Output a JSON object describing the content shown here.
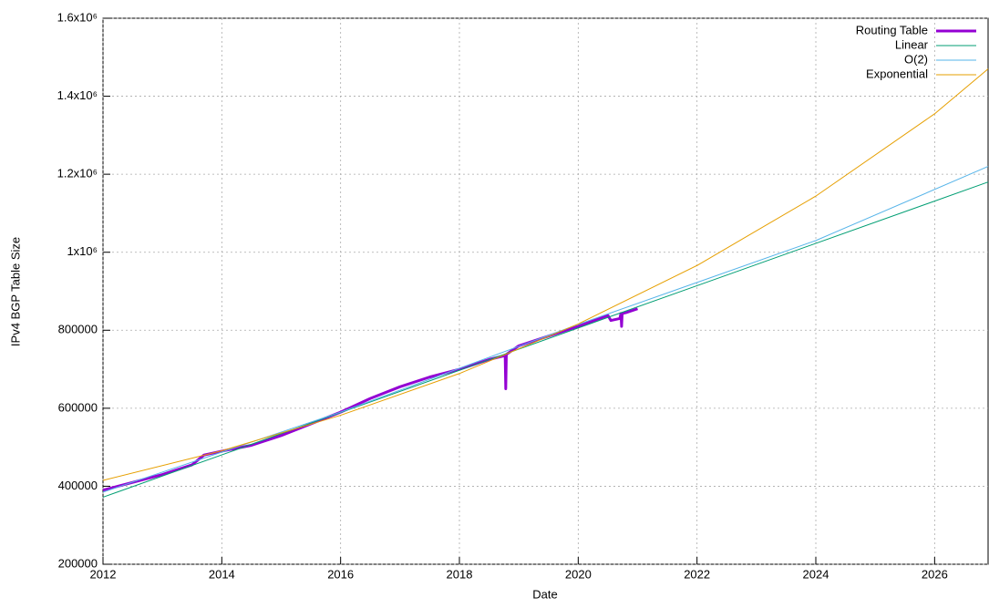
{
  "chart_data": {
    "type": "line",
    "x_label": "Date",
    "y_label": "IPv4 BGP Table Size",
    "xlim": [
      2012,
      2026.9
    ],
    "xticks": [
      2012,
      2014,
      2016,
      2018,
      2020,
      2022,
      2024,
      2026
    ],
    "ylim": [
      200000,
      1600000
    ],
    "yticks": [
      200000,
      400000,
      600000,
      800000,
      {
        "value": 1000000,
        "label": "1x10⁶"
      },
      {
        "value": 1200000,
        "label": "1.2x10⁶"
      },
      {
        "value": 1400000,
        "label": "1.4x10⁶"
      },
      {
        "value": 1600000,
        "label": "1.6x10⁶"
      }
    ],
    "grid": true,
    "legend": "top-right",
    "series": [
      {
        "name": "Routing Table",
        "color": "#9400d3",
        "x": [
          2012.0,
          2012.5,
          2013.0,
          2013.5,
          2013.7,
          2014.0,
          2014.5,
          2015.0,
          2015.5,
          2016.0,
          2016.5,
          2017.0,
          2017.5,
          2018.0,
          2018.5,
          2018.77,
          2018.78,
          2018.79,
          2019.0,
          2019.5,
          2020.0,
          2020.5,
          2020.55,
          2020.7,
          2020.72,
          2020.73,
          2020.74,
          2020.8,
          2021.0
        ],
        "values": [
          390000,
          410000,
          430000,
          455000,
          480000,
          490000,
          505000,
          530000,
          560000,
          590000,
          625000,
          655000,
          680000,
          700000,
          725000,
          735000,
          650000,
          738000,
          760000,
          785000,
          810000,
          838000,
          825000,
          830000,
          843000,
          810000,
          843000,
          845000,
          855000
        ]
      },
      {
        "name": "Linear",
        "color": "#009e73",
        "x": [
          2012,
          2026.9
        ],
        "values": [
          372000,
          1180000
        ]
      },
      {
        "name": "O(2)",
        "color": "#56b4e9",
        "x": [
          2012,
          2016,
          2020,
          2024,
          2026.9
        ],
        "values": [
          385000,
          590000,
          815000,
          1030000,
          1220000
        ]
      },
      {
        "name": "Exponential",
        "color": "#e69f00",
        "x": [
          2012,
          2014,
          2016,
          2018,
          2020,
          2022,
          2024,
          2026,
          2026.9
        ],
        "values": [
          415000,
          491000,
          582000,
          689000,
          816000,
          966000,
          1144000,
          1355000,
          1470000
        ]
      }
    ]
  }
}
